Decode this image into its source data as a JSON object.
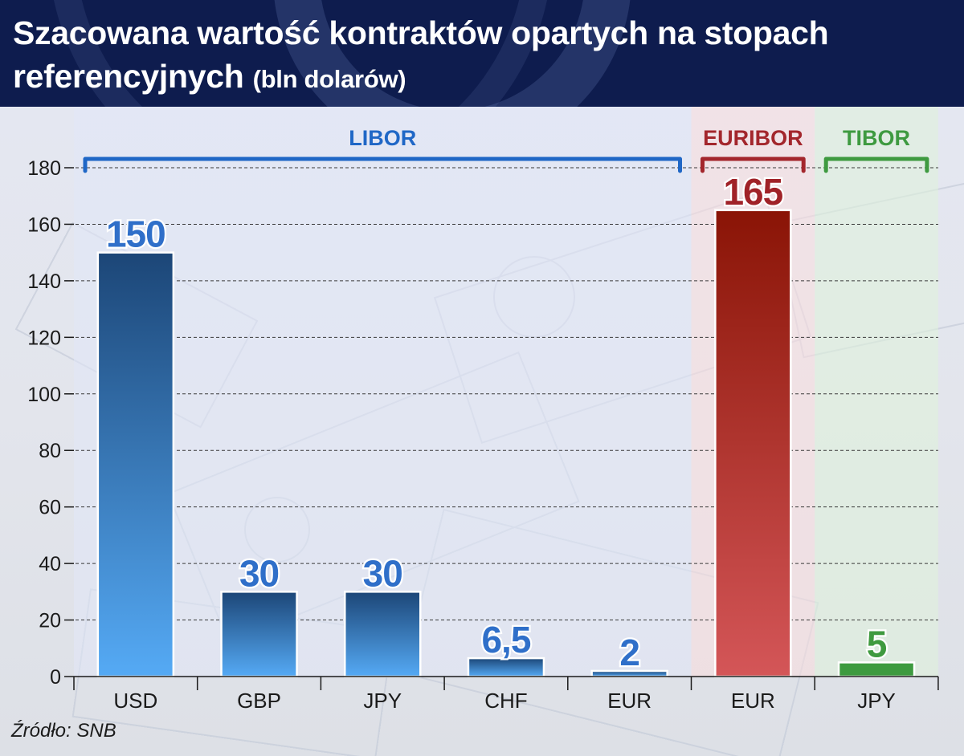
{
  "header": {
    "title": "Szacowana wartość kontraktów opartych na stopach referencyjnych",
    "subtitle": "(bln dolarów)"
  },
  "source": "Źródło: SNB",
  "colors": {
    "header_bg": "#0e1c4e",
    "libor": "#1f67c6",
    "euribor": "#a3262c",
    "tibor": "#3e9a40",
    "libor_bar_top": "#1c4677",
    "libor_bar_bottom": "#55aaf5",
    "euribor_bar_top": "#8a1406",
    "euribor_bar_bottom": "#d45658",
    "tibor_bar": "#3d9a3f",
    "label_outline": "#ffffff",
    "libor_label": "#2f6fc9",
    "euribor_label": "#a02228",
    "tibor_label": "#3f9a3f"
  },
  "chart_data": {
    "type": "bar",
    "title": "Szacowana wartość kontraktów opartych na stopach referencyjnych",
    "xlabel": "",
    "ylabel": "",
    "ylim": [
      0,
      180
    ],
    "yticks": [
      0,
      20,
      40,
      60,
      80,
      100,
      120,
      140,
      160,
      180
    ],
    "grid": true,
    "categories": [
      "USD",
      "GBP",
      "JPY",
      "CHF",
      "EUR",
      "EUR",
      "JPY"
    ],
    "values": [
      150,
      30,
      30,
      6.5,
      2,
      165,
      5
    ],
    "value_labels": [
      "150",
      "30",
      "30",
      "6,5",
      "2",
      "165",
      "5"
    ],
    "groups": [
      {
        "name": "LIBOR",
        "indices": [
          0,
          1,
          2,
          3,
          4
        ],
        "color": "#1f67c6"
      },
      {
        "name": "EURIBOR",
        "indices": [
          5
        ],
        "color": "#a3262c"
      },
      {
        "name": "TIBOR",
        "indices": [
          6
        ],
        "color": "#3e9a40"
      }
    ]
  }
}
